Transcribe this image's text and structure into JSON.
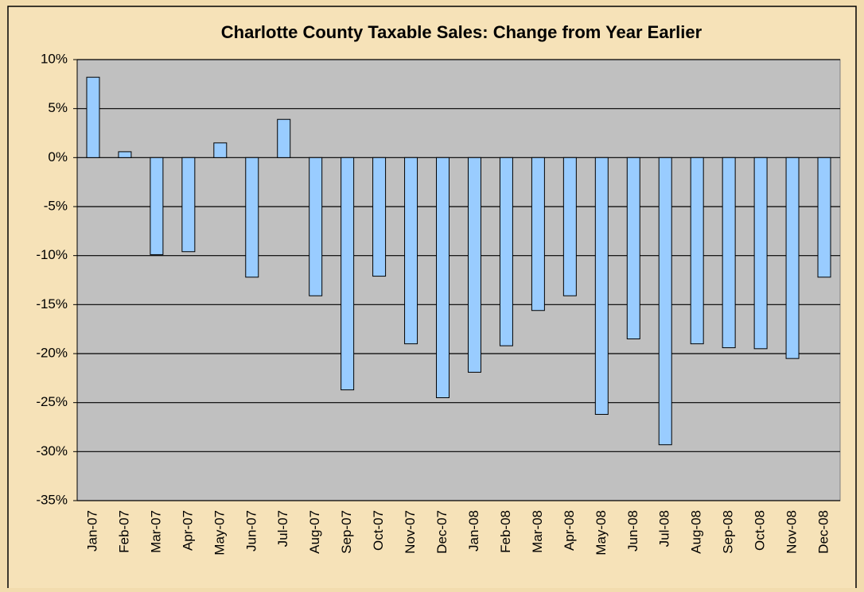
{
  "chart_data": {
    "type": "bar",
    "title": "Charlotte County Taxable Sales: Change from Year Earlier",
    "categories": [
      "Jan-07",
      "Feb-07",
      "Mar-07",
      "Apr-07",
      "May-07",
      "Jun-07",
      "Jul-07",
      "Aug-07",
      "Sep-07",
      "Oct-07",
      "Nov-07",
      "Dec-07",
      "Jan-08",
      "Feb-08",
      "Mar-08",
      "Apr-08",
      "May-08",
      "Jun-08",
      "Jul-08",
      "Aug-08",
      "Sep-08",
      "Oct-08",
      "Nov-08",
      "Dec-08"
    ],
    "values": [
      8.2,
      0.6,
      -9.9,
      -9.6,
      1.5,
      -12.2,
      3.9,
      -14.1,
      -23.7,
      -12.1,
      -19.0,
      -24.5,
      -21.9,
      -19.2,
      -15.6,
      -14.1,
      -26.2,
      -18.5,
      -29.3,
      -19.0,
      -19.4,
      -19.5,
      -20.5,
      -12.2
    ],
    "color": "#99ccff",
    "ylim": [
      -35,
      10
    ],
    "yticks": [
      {
        "value": -35,
        "label": "-35%"
      },
      {
        "value": -30,
        "label": "-30%"
      },
      {
        "value": -25,
        "label": "-25%"
      },
      {
        "value": -20,
        "label": "-20%"
      },
      {
        "value": -15,
        "label": "-15%"
      },
      {
        "value": -10,
        "label": "-10%"
      },
      {
        "value": -5,
        "label": "-5%"
      },
      {
        "value": 0,
        "label": "0%"
      },
      {
        "value": 5,
        "label": "5%"
      },
      {
        "value": 10,
        "label": "10%"
      }
    ],
    "grid": true
  }
}
